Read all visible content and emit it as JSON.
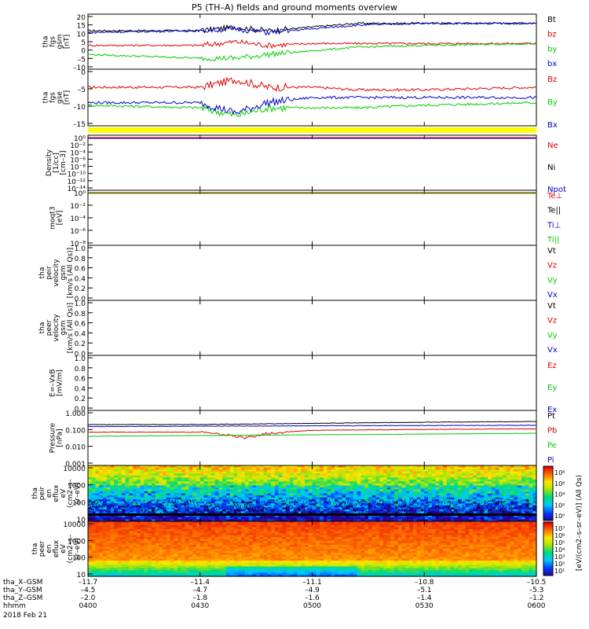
{
  "title": "P5 (TH–A) fields and ground moments overview",
  "date_label": "2018 Feb 21",
  "colors": {
    "black": "#000000",
    "red": "#e00000",
    "green": "#00cc00",
    "blue": "#0000cc",
    "yellow": "#ffff00"
  },
  "time_axis": {
    "rows": [
      {
        "label": "tha_X–GSM",
        "values": [
          "–11.7",
          "–11.4",
          "–11.1",
          "–10.8",
          "–10.5"
        ]
      },
      {
        "label": "tha_Y–GSM",
        "values": [
          "–4.5",
          "–4.7",
          "–4.9",
          "–5.1",
          "–5.3"
        ]
      },
      {
        "label": "tha_Z–GSM",
        "values": [
          "–2.0",
          "–1.8",
          "–1.6",
          "–1.4",
          "–1.2"
        ]
      },
      {
        "label": "hhmm",
        "values": [
          "0400",
          "0430",
          "0500",
          "0530",
          "0600"
        ]
      }
    ]
  },
  "colorbar": {
    "label": "[eV/(cm2–s–sr–eV)] (All Qs)",
    "upper_ticks": [
      "10⁸",
      "10⁶",
      "10⁴",
      "10²",
      "10⁰"
    ],
    "lower_ticks": [
      "10⁷",
      "10⁶",
      "10⁵",
      "10⁴",
      "10³",
      "10²",
      "10¹"
    ]
  },
  "chart_data": [
    {
      "id": "fgs_gsm",
      "type": "line",
      "ylabel": [
        "tha",
        "fgs",
        "gsm",
        "[nT]"
      ],
      "ylim": [
        -10,
        20
      ],
      "yticks": [
        "20",
        "15",
        "10",
        "5",
        "0",
        "–5",
        "–10"
      ],
      "legend": [
        "Bt",
        "bz",
        "by",
        "bx"
      ],
      "series": [
        {
          "name": "Bt",
          "color": "#000000",
          "x": [
            0,
            0.25,
            0.33,
            0.4,
            0.5,
            0.6,
            0.75,
            1
          ],
          "y": [
            11,
            11,
            13,
            11,
            13,
            15,
            15,
            15
          ]
        },
        {
          "name": "bz",
          "color": "#e00000",
          "x": [
            0,
            0.25,
            0.33,
            0.4,
            0.5,
            0.6,
            0.75,
            1
          ],
          "y": [
            3,
            3,
            5,
            3,
            4,
            4,
            4,
            4
          ]
        },
        {
          "name": "by",
          "color": "#00cc00",
          "x": [
            0,
            0.25,
            0.33,
            0.4,
            0.5,
            0.6,
            0.75,
            1
          ],
          "y": [
            -2,
            -4,
            -4,
            -2,
            0,
            2,
            3,
            4
          ]
        },
        {
          "name": "bx",
          "color": "#0000cc",
          "x": [
            0,
            0.25,
            0.33,
            0.4,
            0.5,
            0.6,
            0.75,
            1
          ],
          "y": [
            10,
            11,
            12,
            10,
            12,
            14,
            15,
            15
          ]
        }
      ]
    },
    {
      "id": "fgs_gse",
      "type": "line",
      "ylabel": [
        "tha",
        "fgs",
        "gse",
        "[nT]"
      ],
      "ylim": [
        -17,
        5
      ],
      "yticks": [
        "0",
        "–5",
        "–10",
        "–15"
      ],
      "legend": [
        "Bz",
        "By",
        "Bx"
      ],
      "series": [
        {
          "name": "Bz",
          "color": "#e00000",
          "x": [
            0,
            0.25,
            0.33,
            0.4,
            0.5,
            0.6,
            0.75,
            1
          ],
          "y": [
            -2,
            -2,
            1,
            -2,
            -2,
            -3,
            -3,
            -2
          ]
        },
        {
          "name": "By",
          "color": "#00cc00",
          "x": [
            0,
            0.25,
            0.33,
            0.4,
            0.5,
            0.6,
            0.75,
            1
          ],
          "y": [
            -9,
            -10,
            -13,
            -10,
            -10,
            -10,
            -9,
            -8
          ]
        },
        {
          "name": "Bx",
          "color": "#0000cc",
          "x": [
            0,
            0.25,
            0.33,
            0.4,
            0.5,
            0.6,
            0.75,
            1
          ],
          "y": [
            -8,
            -8,
            -12,
            -8,
            -6,
            -6,
            -6,
            -6
          ]
        }
      ]
    },
    {
      "id": "density",
      "type": "line",
      "ylabel": [
        "Density",
        "[1/cc]",
        "[cm–3]"
      ],
      "yticks": [
        "10⁰",
        "10⁻²",
        "10⁻⁴",
        "10⁻⁶",
        "10⁻⁸",
        "10⁻¹⁰",
        "10⁻¹²",
        "10⁻¹⁴"
      ],
      "legend": [
        "Ne",
        "Ni",
        "Npot"
      ]
    },
    {
      "id": "temperature",
      "type": "line",
      "ylabel": [
        "moqt3",
        "[eV]"
      ],
      "yticks": [
        "10⁰",
        "10⁻²",
        "10⁻⁴",
        "10⁻⁶",
        "10⁻⁸"
      ],
      "legend": [
        "Te⊥",
        "Te||",
        "Ti⊥",
        "Ti||"
      ]
    },
    {
      "id": "peir_velocity",
      "type": "line",
      "ylabel": [
        "tha",
        "peir",
        "velocity",
        "gsm",
        "[km/s (All Qs)]"
      ],
      "ylim": [
        0,
        1
      ],
      "yticks": [
        "1.0",
        "0.8",
        "0.6",
        "0.4",
        "0.2",
        "0.0"
      ],
      "legend": [
        "Vt",
        "Vz",
        "Vy",
        "Vx"
      ]
    },
    {
      "id": "peer_velocity",
      "type": "line",
      "ylabel": [
        "tha",
        "peer",
        "velocity",
        "gsm",
        "[km/s (All Qs)]"
      ],
      "ylim": [
        0,
        1
      ],
      "yticks": [
        "1.0",
        "0.8",
        "0.6",
        "0.4",
        "0.2",
        "0.0"
      ],
      "legend": [
        "Vt",
        "Vz",
        "Vy",
        "Vx"
      ]
    },
    {
      "id": "efield",
      "type": "line",
      "ylabel": [
        "E=–VxB",
        "[mV/m]"
      ],
      "ylim": [
        0,
        1
      ],
      "yticks": [
        "1.0",
        "0.8",
        "0.6",
        "0.4",
        "0.2",
        "0.0"
      ],
      "legend": [
        "Ez",
        "Ey",
        "Ex"
      ]
    },
    {
      "id": "pressure",
      "type": "line",
      "ylabel": [
        "Pressure",
        "[nPa]"
      ],
      "yticks": [
        "1.000",
        "0.100",
        "0.010",
        "0.001"
      ],
      "legend": [
        "Pt",
        "Pb",
        "Pe",
        "Pi"
      ],
      "series": [
        {
          "name": "Pt",
          "color": "#000000",
          "x": [
            0,
            0.25,
            0.4,
            0.6,
            0.8,
            1
          ],
          "y": [
            0.2,
            0.2,
            0.22,
            0.25,
            0.28,
            0.3
          ]
        },
        {
          "name": "Pb",
          "color": "#e00000",
          "x": [
            0,
            0.25,
            0.35,
            0.4,
            0.5,
            0.7,
            1
          ],
          "y": [
            0.07,
            0.07,
            0.03,
            0.06,
            0.09,
            0.1,
            0.11
          ]
        },
        {
          "name": "Pe",
          "color": "#00cc00",
          "x": [
            0,
            0.3,
            0.6,
            1
          ],
          "y": [
            0.04,
            0.045,
            0.05,
            0.06
          ]
        },
        {
          "name": "Pi",
          "color": "#0000cc",
          "x": [
            0,
            0.3,
            0.6,
            1
          ],
          "y": [
            0.15,
            0.16,
            0.17,
            0.18
          ]
        }
      ]
    },
    {
      "id": "peir_eflux",
      "type": "heatmap",
      "ylabel": [
        "tha",
        "peir",
        "en",
        "eflux",
        "eV",
        "(cm2–s–",
        "sr–eV)"
      ],
      "yticks": [
        "10000",
        "1000",
        "100",
        "10"
      ]
    },
    {
      "id": "peer_eflux",
      "type": "heatmap",
      "ylabel": [
        "tha",
        "peer",
        "en",
        "eflux",
        "eV",
        "(cm2–s–",
        "sr–eV)"
      ],
      "yticks": [
        "10000",
        "1000",
        "100",
        "10"
      ]
    }
  ]
}
